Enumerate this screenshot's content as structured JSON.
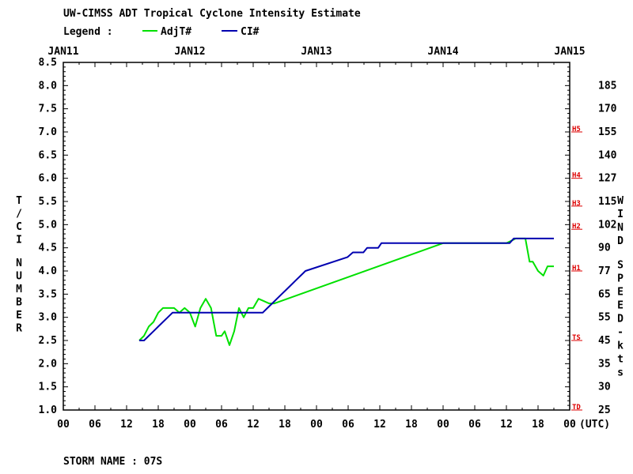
{
  "header": {
    "title": "UW-CIMSS ADT Tropical Cyclone Intensity Estimate",
    "legend_label": "Legend :"
  },
  "footer": {
    "storm_name": "STORM NAME : 07S"
  },
  "chart_data": {
    "type": "line",
    "title": "UW-CIMSS ADT Tropical Cyclone Intensity Estimate",
    "x_axis": {
      "unit_label": "(UTC)",
      "day_labels": [
        "JAN11",
        "JAN12",
        "JAN13",
        "JAN14",
        "JAN15"
      ],
      "hour_labels": [
        "00",
        "06",
        "12",
        "18",
        "00",
        "06",
        "12",
        "18",
        "00",
        "06",
        "12",
        "18",
        "00",
        "06",
        "12",
        "18",
        "00"
      ],
      "range_hours": [
        0,
        96
      ]
    },
    "y_left": {
      "label": "T/CI NUMBER",
      "range": [
        1.0,
        8.5
      ],
      "ticks": [
        "1.0",
        "1.5",
        "2.0",
        "2.5",
        "3.0",
        "3.5",
        "4.0",
        "4.5",
        "5.0",
        "5.5",
        "6.0",
        "6.5",
        "7.0",
        "7.5",
        "8.0",
        "8.5"
      ]
    },
    "y_right": {
      "label": "WIND SPEED-kts",
      "ticks": [
        "25",
        "30",
        "35",
        "45",
        "55",
        "65",
        "77",
        "90",
        "102",
        "115",
        "127",
        "140",
        "155",
        "170",
        "185"
      ],
      "categories": [
        {
          "label": "TD",
          "t": 1.0
        },
        {
          "label": "TS",
          "t": 2.5
        },
        {
          "label": "H1",
          "t": 4.0
        },
        {
          "label": "H2",
          "t": 4.9
        },
        {
          "label": "H3",
          "t": 5.4
        },
        {
          "label": "H4",
          "t": 6.0
        },
        {
          "label": "H5",
          "t": 7.0
        }
      ]
    },
    "grid": false,
    "legend_position": "top-left",
    "series": [
      {
        "name": "AdjT#",
        "color": "#00e000",
        "points": [
          [
            14.4,
            2.5
          ],
          [
            15.3,
            2.6
          ],
          [
            16.2,
            2.8
          ],
          [
            17.1,
            2.9
          ],
          [
            18.0,
            3.1
          ],
          [
            18.9,
            3.2
          ],
          [
            21.0,
            3.2
          ],
          [
            22.0,
            3.1
          ],
          [
            23.0,
            3.2
          ],
          [
            24.0,
            3.1
          ],
          [
            25.0,
            2.8
          ],
          [
            26.0,
            3.2
          ],
          [
            27.0,
            3.4
          ],
          [
            28.0,
            3.2
          ],
          [
            29.0,
            2.6
          ],
          [
            30.0,
            2.6
          ],
          [
            30.6,
            2.7
          ],
          [
            31.5,
            2.4
          ],
          [
            32.4,
            2.7
          ],
          [
            33.3,
            3.2
          ],
          [
            34.2,
            3.0
          ],
          [
            35.1,
            3.2
          ],
          [
            36.0,
            3.2
          ],
          [
            37.0,
            3.4
          ],
          [
            38.0,
            3.35
          ],
          [
            39.0,
            3.3
          ],
          [
            40.0,
            3.3
          ],
          [
            72.0,
            4.6
          ],
          [
            84.0,
            4.6
          ],
          [
            85.8,
            4.7
          ],
          [
            87.6,
            4.7
          ],
          [
            88.4,
            4.2
          ],
          [
            89.0,
            4.2
          ],
          [
            90.0,
            4.0
          ],
          [
            91.0,
            3.9
          ],
          [
            91.8,
            4.1
          ],
          [
            93.0,
            4.1
          ]
        ]
      },
      {
        "name": "CI#",
        "color": "#0000b0",
        "points": [
          [
            14.4,
            2.5
          ],
          [
            15.3,
            2.5
          ],
          [
            16.2,
            2.6
          ],
          [
            17.1,
            2.7
          ],
          [
            18.0,
            2.8
          ],
          [
            18.9,
            2.9
          ],
          [
            19.8,
            3.0
          ],
          [
            20.7,
            3.1
          ],
          [
            37.8,
            3.1
          ],
          [
            38.7,
            3.2
          ],
          [
            39.6,
            3.3
          ],
          [
            40.5,
            3.4
          ],
          [
            41.4,
            3.5
          ],
          [
            42.3,
            3.6
          ],
          [
            43.2,
            3.7
          ],
          [
            44.1,
            3.8
          ],
          [
            45.0,
            3.9
          ],
          [
            45.9,
            4.0
          ],
          [
            53.9,
            4.3
          ],
          [
            54.9,
            4.4
          ],
          [
            56.9,
            4.4
          ],
          [
            57.6,
            4.5
          ],
          [
            59.7,
            4.5
          ],
          [
            60.3,
            4.6
          ],
          [
            84.6,
            4.6
          ],
          [
            85.4,
            4.7
          ],
          [
            93.0,
            4.7
          ]
        ]
      }
    ]
  }
}
